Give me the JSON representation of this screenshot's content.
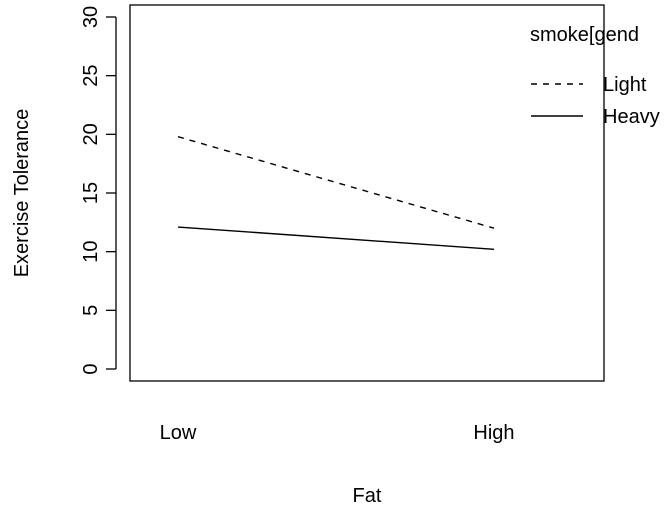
{
  "chart_data": {
    "type": "line",
    "xlabel": "Fat",
    "ylabel": "Exercise Tolerance",
    "categories": [
      "Low",
      "High"
    ],
    "ylim": [
      0,
      30
    ],
    "yticks": [
      0,
      5,
      10,
      15,
      20,
      25,
      30
    ],
    "grid": false,
    "legend": {
      "title": "smoke[gend",
      "placement": "top-right",
      "entries": [
        "Light",
        "Heavy"
      ]
    },
    "series": [
      {
        "name": "Light",
        "line_style": "dashed",
        "values": [
          19.8,
          12.0
        ]
      },
      {
        "name": "Heavy",
        "line_style": "solid",
        "values": [
          12.1,
          10.2
        ]
      }
    ]
  }
}
